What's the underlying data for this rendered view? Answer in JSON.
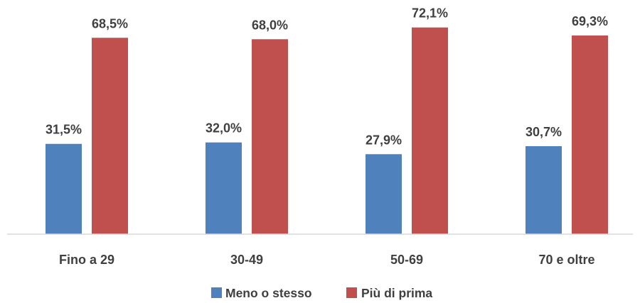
{
  "chart_data": {
    "type": "bar",
    "categories": [
      "Fino a 29",
      "30-49",
      "50-69",
      "70 e oltre"
    ],
    "series": [
      {
        "name": "Meno o stesso",
        "color": "#4f81bd",
        "values": [
          31.5,
          32.0,
          27.9,
          30.7
        ],
        "labels": [
          "31,5%",
          "32,0%",
          "27,9%",
          "30,7%"
        ]
      },
      {
        "name": "Più di prima",
        "color": "#c0504d",
        "values": [
          68.5,
          68.0,
          72.1,
          69.3
        ],
        "labels": [
          "68,5%",
          "68,0%",
          "72,1%",
          "69,3%"
        ]
      }
    ],
    "ylim": [
      0,
      80
    ],
    "grid": false,
    "legend": "bottom",
    "axis_color": "#d9d9d9",
    "label_color": "#3f3f3f"
  }
}
